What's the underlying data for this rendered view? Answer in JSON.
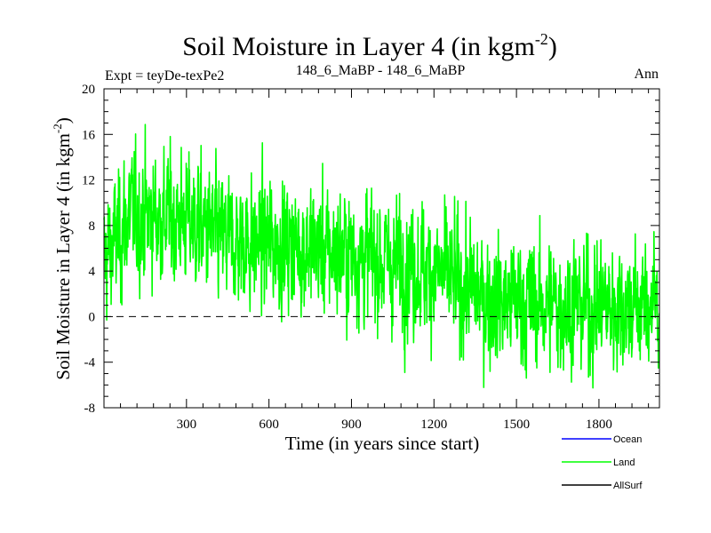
{
  "chart_data": {
    "type": "line",
    "title": "Soil Moisture in Layer 4 (in kgm",
    "title_sup": "-2",
    "title_close": ")",
    "subtitle_left": "Expt = teyDe-texPe2",
    "subtitle_center": "148_6_MaBP - 148_6_MaBP",
    "subtitle_right": "Ann",
    "xlabel": "Time (in years since start)",
    "ylabel": "Soil Moisture in Layer 4 (in kgm",
    "ylabel_sup": "-2",
    "ylabel_close": ")",
    "xlim": [
      0,
      2020
    ],
    "ylim": [
      -8,
      20
    ],
    "xticks": [
      300,
      600,
      900,
      1200,
      1500,
      1800
    ],
    "yticks": [
      -8,
      -4,
      0,
      4,
      8,
      12,
      16,
      20
    ],
    "zero_line": 0,
    "legend": [
      {
        "name": "Ocean",
        "color": "#0000ff"
      },
      {
        "name": "Land",
        "color": "#00ff00"
      },
      {
        "name": "AllSurf",
        "color": "#000000"
      }
    ],
    "series": [
      {
        "name": "Land",
        "color": "#00ff00",
        "trend_x": [
          0,
          100,
          300,
          450,
          600,
          900,
          1200,
          1400,
          1600,
          1800,
          2020
        ],
        "trend_y": [
          5,
          9,
          8.5,
          6.5,
          6.5,
          5.5,
          4,
          1.5,
          1,
          1,
          1
        ],
        "noise_sd": 3.1,
        "n_points": 2020,
        "y_min": -7,
        "y_max": 18.3
      }
    ]
  }
}
